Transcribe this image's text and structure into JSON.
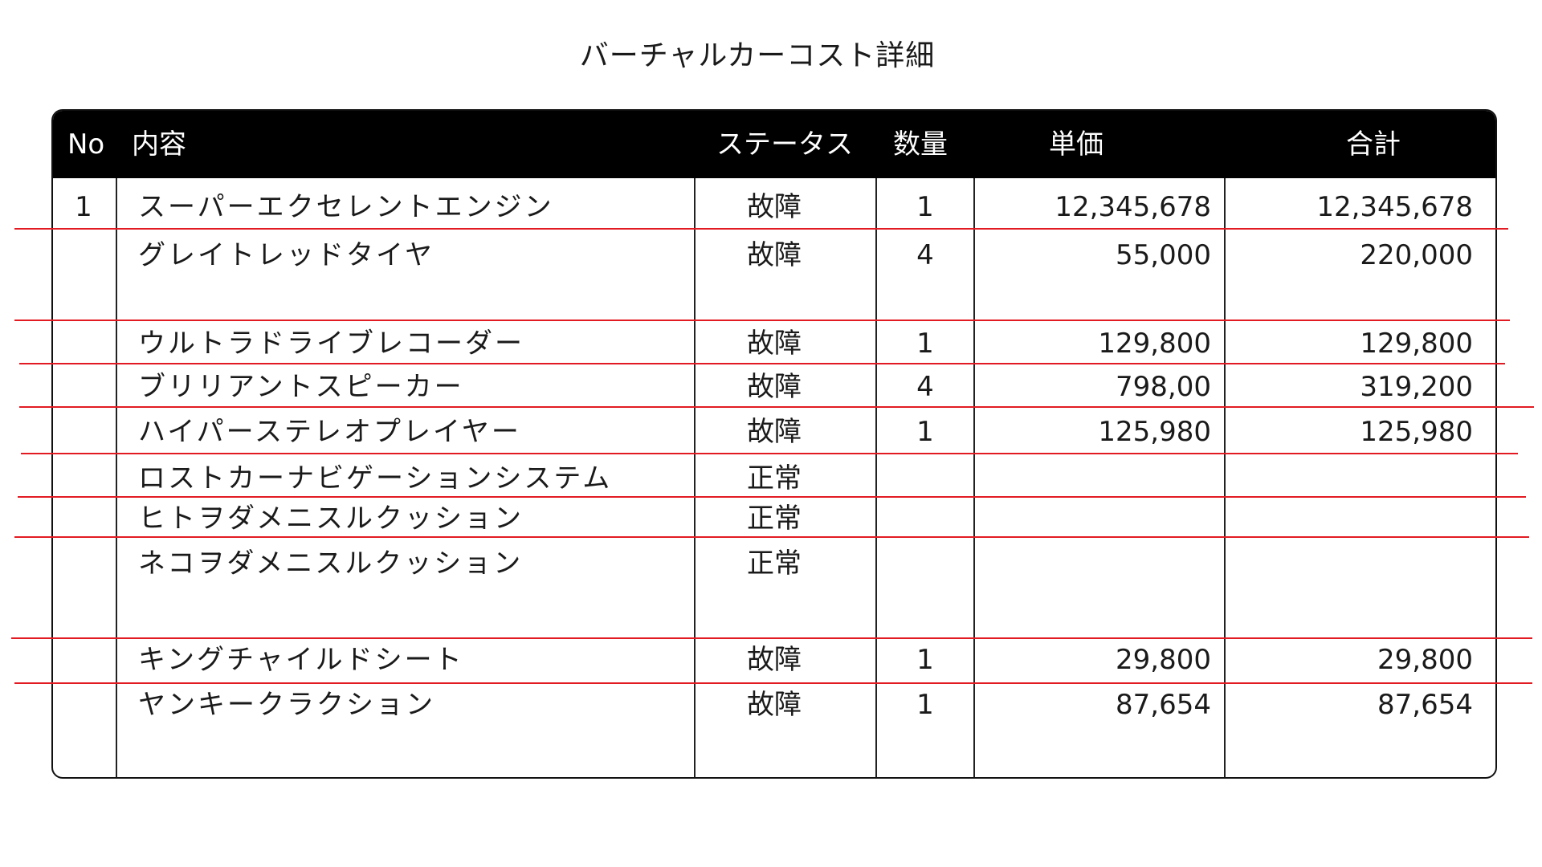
{
  "document": {
    "title": "バーチャルカーコスト詳細"
  },
  "table": {
    "headers": {
      "no": "No",
      "item": "内容",
      "status": "ステータス",
      "qty": "数量",
      "unit_price": "単価",
      "total": "合計"
    },
    "rows": [
      {
        "no": "1",
        "item": "スーパーエクセレントエンジン",
        "status": "故障",
        "qty": "1",
        "unit_price": "12,345,678",
        "total": "12,345,678"
      },
      {
        "no": "",
        "item": "グレイトレッドタイヤ",
        "status": "故障",
        "qty": "4",
        "unit_price": "55,000",
        "total": "220,000"
      },
      {
        "no": "",
        "item": "ウルトラドライブレコーダー",
        "status": "故障",
        "qty": "1",
        "unit_price": "129,800",
        "total": "129,800"
      },
      {
        "no": "",
        "item": "ブリリアントスピーカー",
        "status": "故障",
        "qty": "4",
        "unit_price": "798,00",
        "total": "319,200"
      },
      {
        "no": "",
        "item": "ハイパーステレオプレイヤー",
        "status": "故障",
        "qty": "1",
        "unit_price": "125,980",
        "total": "125,980"
      },
      {
        "no": "",
        "item": "ロストカーナビゲーションシステム",
        "status": "正常",
        "qty": "",
        "unit_price": "",
        "total": ""
      },
      {
        "no": "",
        "item": "ヒトヲダメニスルクッション",
        "status": "正常",
        "qty": "",
        "unit_price": "",
        "total": ""
      },
      {
        "no": "",
        "item": "ネコヲダメニスルクッション",
        "status": "正常",
        "qty": "",
        "unit_price": "",
        "total": ""
      },
      {
        "no": "",
        "item": "キングチャイルドシート",
        "status": "故障",
        "qty": "1",
        "unit_price": "29,800",
        "total": "29,800"
      },
      {
        "no": "",
        "item": "ヤンキークラクション",
        "status": "故障",
        "qty": "1",
        "unit_price": "87,654",
        "total": "87,654"
      }
    ]
  },
  "colors": {
    "header_bg": "#000000",
    "header_text": "#ffffff",
    "row_separator": "#e21b23",
    "border": "#111111"
  }
}
